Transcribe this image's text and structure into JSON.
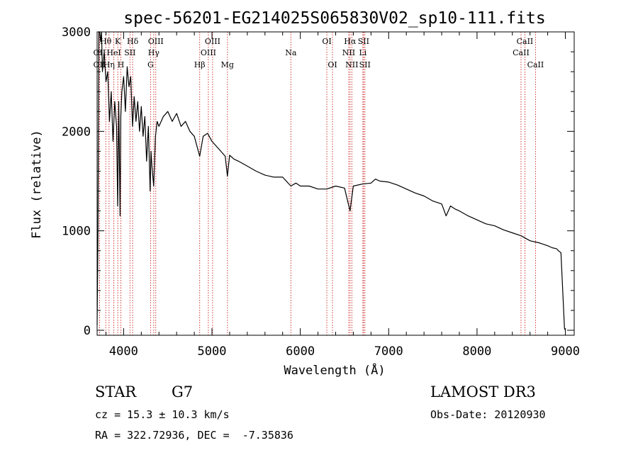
{
  "chart_data": {
    "type": "line",
    "title": "spec-56201-EG214025S065830V02_sp10-111.fits",
    "xlabel": "Wavelength (Å)",
    "ylabel": "Flux (relative)",
    "xlim": [
      3700,
      9100
    ],
    "ylim": [
      -50,
      3000
    ],
    "xticks": [
      4000,
      5000,
      6000,
      7000,
      8000,
      9000
    ],
    "xtick_labels": [
      "4000",
      "5000",
      "6000",
      "7000",
      "8000",
      "9000"
    ],
    "yticks": [
      0,
      1000,
      2000,
      3000
    ],
    "ytick_labels": [
      "0",
      "1000",
      "2000",
      "3000"
    ],
    "grid": false,
    "series": [
      {
        "name": "spectrum",
        "x": [
          3700,
          3710,
          3720,
          3730,
          3740,
          3750,
          3760,
          3780,
          3800,
          3820,
          3840,
          3860,
          3880,
          3900,
          3920,
          3933,
          3945,
          3960,
          3968,
          3980,
          4000,
          4020,
          4040,
          4060,
          4080,
          4101,
          4120,
          4140,
          4160,
          4180,
          4200,
          4220,
          4240,
          4260,
          4280,
          4300,
          4310,
          4320,
          4340,
          4360,
          4380,
          4400,
          4450,
          4500,
          4550,
          4600,
          4650,
          4700,
          4750,
          4800,
          4861,
          4900,
          4950,
          5000,
          5050,
          5100,
          5150,
          5175,
          5200,
          5250,
          5300,
          5400,
          5500,
          5600,
          5700,
          5800,
          5893,
          5950,
          6000,
          6100,
          6200,
          6300,
          6400,
          6500,
          6563,
          6600,
          6700,
          6800,
          6850,
          6900,
          7000,
          7100,
          7200,
          7300,
          7400,
          7500,
          7600,
          7650,
          7700,
          7750,
          7800,
          7900,
          8000,
          8100,
          8200,
          8300,
          8400,
          8500,
          8600,
          8700,
          8800,
          8850,
          8900,
          8920,
          8950,
          8990,
          9000
        ],
        "y": [
          50,
          1000,
          3000,
          3200,
          2900,
          3050,
          2600,
          2800,
          2500,
          2600,
          2100,
          2400,
          1900,
          2300,
          2050,
          1250,
          2300,
          1150,
          2150,
          2400,
          2550,
          2200,
          2650,
          2450,
          2550,
          2050,
          2350,
          2100,
          2300,
          2000,
          2250,
          1950,
          2150,
          1700,
          2050,
          1400,
          1800,
          1650,
          1450,
          1950,
          2100,
          2050,
          2150,
          2200,
          2100,
          2180,
          2050,
          2100,
          2000,
          1950,
          1750,
          1950,
          1980,
          1900,
          1850,
          1800,
          1750,
          1550,
          1760,
          1720,
          1700,
          1650,
          1600,
          1560,
          1540,
          1540,
          1450,
          1480,
          1450,
          1450,
          1420,
          1420,
          1450,
          1430,
          1200,
          1450,
          1470,
          1480,
          1520,
          1500,
          1490,
          1460,
          1420,
          1380,
          1350,
          1300,
          1270,
          1150,
          1250,
          1220,
          1200,
          1150,
          1110,
          1070,
          1050,
          1010,
          980,
          950,
          900,
          880,
          850,
          830,
          820,
          800,
          780,
          20,
          0
        ]
      }
    ],
    "line_markers": [
      {
        "label": "Hθ",
        "x": 3798,
        "row": 1
      },
      {
        "label": "OII",
        "x": 3727,
        "row": 2
      },
      {
        "label": "OII",
        "x": 3727,
        "row": 3
      },
      {
        "label": "K",
        "x": 3934,
        "row": 1
      },
      {
        "label": "HeI",
        "x": 3889,
        "row": 2
      },
      {
        "label": "Hη",
        "x": 3835,
        "row": 3
      },
      {
        "label": "SII",
        "x": 4072,
        "row": 2
      },
      {
        "label": "H",
        "x": 3969,
        "row": 3
      },
      {
        "label": "Hδ",
        "x": 4102,
        "row": 1
      },
      {
        "label": "OIII",
        "x": 4364,
        "row": 1
      },
      {
        "label": "Hγ",
        "x": 4341,
        "row": 2
      },
      {
        "label": "G",
        "x": 4305,
        "row": 3
      },
      {
        "label": "OIII",
        "x": 5007,
        "row": 1
      },
      {
        "label": "OIII",
        "x": 4959,
        "row": 2
      },
      {
        "label": "Hβ",
        "x": 4861,
        "row": 3
      },
      {
        "label": "Mg",
        "x": 5175,
        "row": 3
      },
      {
        "label": "Na",
        "x": 5893,
        "row": 2
      },
      {
        "label": "OI",
        "x": 6300,
        "row": 1
      },
      {
        "label": "OI",
        "x": 6364,
        "row": 3
      },
      {
        "label": "Hα",
        "x": 6563,
        "row": 1
      },
      {
        "label": "SII",
        "x": 6716,
        "row": 1
      },
      {
        "label": "NII",
        "x": 6548,
        "row": 2
      },
      {
        "label": "Li",
        "x": 6708,
        "row": 2
      },
      {
        "label": "NII",
        "x": 6583,
        "row": 3
      },
      {
        "label": "SII",
        "x": 6731,
        "row": 3
      },
      {
        "label": "CaII",
        "x": 8542,
        "row": 1
      },
      {
        "label": "CaII",
        "x": 8498,
        "row": 2
      },
      {
        "label": "CaII",
        "x": 8662,
        "row": 3
      }
    ]
  },
  "info": {
    "class_label": "STAR",
    "subclass_label": "G7",
    "survey_label": "LAMOST DR3",
    "cz_text": "cz = 15.3 ± 10.3 km/s",
    "obs_date_text": "Obs-Date: 20120930",
    "coords_text": "RA = 322.72936, DEC =  -7.35836"
  },
  "colors": {
    "axis": "#000000",
    "line": "#000000",
    "marker": "#cc2222"
  }
}
